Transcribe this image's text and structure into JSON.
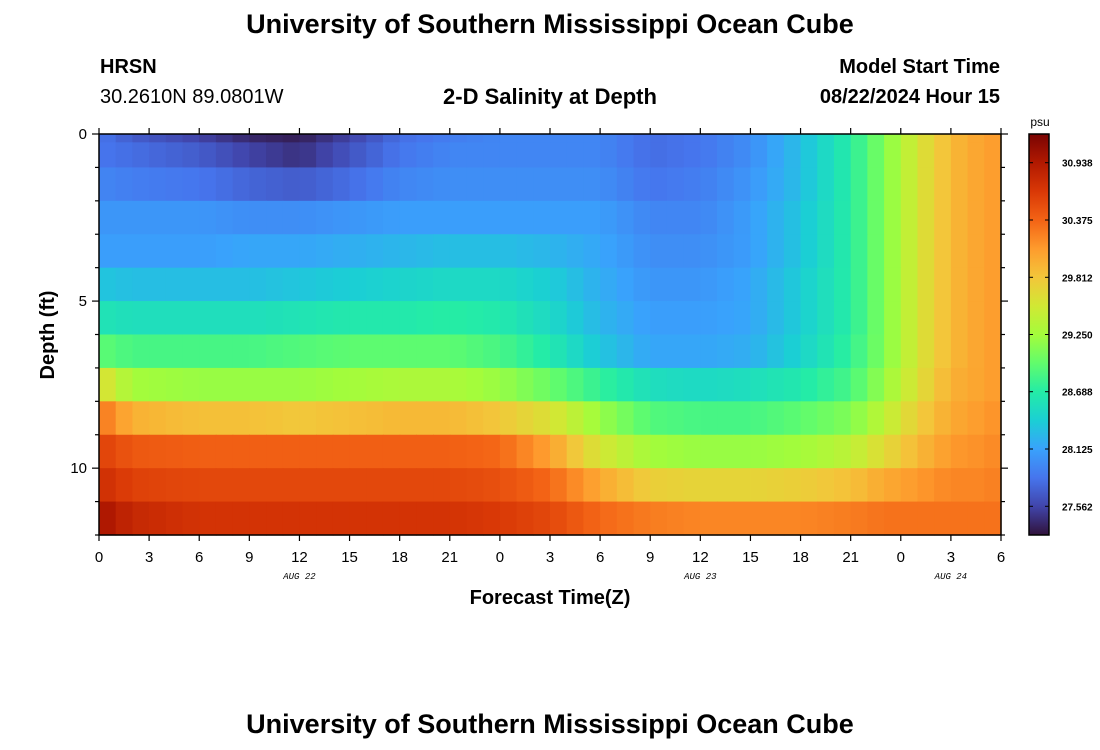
{
  "page": {
    "title_top": "University of Southern Mississippi Ocean Cube",
    "title_bottom": "University of Southern Mississippi Ocean Cube",
    "station": "HRSN",
    "coords": "30.2610N  89.0801W",
    "plot_title": "2-D Salinity at Depth",
    "model_start_label": "Model Start Time",
    "model_start_value": "08/22/2024 Hour 15"
  },
  "chart_data": {
    "type": "heatmap",
    "title": "2-D Salinity at Depth",
    "xlabel": "Forecast Time(Z)",
    "ylabel": "Depth (ft)",
    "x_tick_labels": [
      "0",
      "3",
      "6",
      "9",
      "12",
      "15",
      "18",
      "21",
      "0",
      "3",
      "6",
      "9",
      "12",
      "15",
      "18",
      "21",
      "0",
      "3",
      "6"
    ],
    "x_hours": [
      0,
      54
    ],
    "date_labels": [
      {
        "text": "AUG 22",
        "hour": 12
      },
      {
        "text": "AUG 23",
        "hour": 36
      },
      {
        "text": "AUG 24",
        "hour": 51
      }
    ],
    "y_ticks": [
      0,
      5,
      10
    ],
    "ylim": [
      0,
      12
    ],
    "layer_depths_ft": [
      0,
      0.5,
      1.5,
      2.5,
      3.5,
      4.5,
      5.5,
      6.5,
      7.5,
      8.5,
      9.5,
      10.5,
      11.5
    ],
    "colorbar": {
      "unit": "psu",
      "ticks": [
        "30.938",
        "30.375",
        "29.812",
        "29.250",
        "28.688",
        "28.125",
        "27.562"
      ],
      "vmin": 27.28,
      "vmax": 31.22
    },
    "colormap": [
      "#30123b",
      "#4145ab",
      "#4675ed",
      "#39a2fc",
      "#1bcfd4",
      "#24eca6",
      "#61fc6c",
      "#a4fc3b",
      "#d1e834",
      "#f3c63a",
      "#fe9b2d",
      "#f36315",
      "#d93806",
      "#b11901",
      "#7a0403"
    ],
    "control_hours": [
      0,
      2,
      6,
      9,
      12,
      15,
      18,
      21,
      24,
      27,
      30,
      33,
      36,
      39,
      42,
      45,
      47,
      49,
      51,
      53,
      54
    ],
    "salinity": [
      [
        27.85,
        27.7,
        27.55,
        27.4,
        27.35,
        27.55,
        27.8,
        27.9,
        27.95,
        27.95,
        27.95,
        27.8,
        27.85,
        28.0,
        28.3,
        28.7,
        29.1,
        29.55,
        29.9,
        30.05,
        30.1
      ],
      [
        27.85,
        27.8,
        27.7,
        27.55,
        27.45,
        27.65,
        27.85,
        27.95,
        27.95,
        27.95,
        27.95,
        27.8,
        27.85,
        28.0,
        28.3,
        28.7,
        29.1,
        29.55,
        29.9,
        30.05,
        30.1
      ],
      [
        27.95,
        27.9,
        27.85,
        27.75,
        27.7,
        27.8,
        27.95,
        28.0,
        28.0,
        28.0,
        28.0,
        27.85,
        27.9,
        28.05,
        28.3,
        28.7,
        29.1,
        29.55,
        29.9,
        30.05,
        30.1
      ],
      [
        28.05,
        28.05,
        28.05,
        28.0,
        28.0,
        28.05,
        28.1,
        28.1,
        28.1,
        28.1,
        28.1,
        27.95,
        27.95,
        28.1,
        28.35,
        28.7,
        29.1,
        29.55,
        29.9,
        30.05,
        30.1
      ],
      [
        28.1,
        28.1,
        28.1,
        28.15,
        28.15,
        28.2,
        28.25,
        28.3,
        28.3,
        28.25,
        28.15,
        28.0,
        28.0,
        28.1,
        28.35,
        28.7,
        29.1,
        29.55,
        29.9,
        30.05,
        30.1
      ],
      [
        28.35,
        28.3,
        28.3,
        28.3,
        28.35,
        28.4,
        28.45,
        28.5,
        28.5,
        28.4,
        28.2,
        28.05,
        28.05,
        28.15,
        28.4,
        28.7,
        29.1,
        29.55,
        29.9,
        30.05,
        30.1
      ],
      [
        28.6,
        28.55,
        28.55,
        28.55,
        28.6,
        28.65,
        28.65,
        28.7,
        28.65,
        28.5,
        28.25,
        28.1,
        28.1,
        28.15,
        28.4,
        28.7,
        29.1,
        29.55,
        29.9,
        30.05,
        30.1
      ],
      [
        28.95,
        28.85,
        28.85,
        28.85,
        28.9,
        28.95,
        28.95,
        28.95,
        28.85,
        28.65,
        28.35,
        28.15,
        28.15,
        28.2,
        28.45,
        28.75,
        29.1,
        29.55,
        29.9,
        30.05,
        30.1
      ],
      [
        29.65,
        29.25,
        29.2,
        29.2,
        29.2,
        29.25,
        29.3,
        29.3,
        29.2,
        29.0,
        28.75,
        28.55,
        28.5,
        28.55,
        28.65,
        28.85,
        29.2,
        29.6,
        29.95,
        30.05,
        30.1
      ],
      [
        30.3,
        29.95,
        29.85,
        29.85,
        29.8,
        29.85,
        29.9,
        29.9,
        29.8,
        29.6,
        29.2,
        28.9,
        28.85,
        28.85,
        28.95,
        29.1,
        29.4,
        29.75,
        30.0,
        30.1,
        30.15
      ],
      [
        30.6,
        30.45,
        30.4,
        30.4,
        30.4,
        30.4,
        30.4,
        30.4,
        30.35,
        30.05,
        29.55,
        29.25,
        29.2,
        29.2,
        29.25,
        29.4,
        29.65,
        29.9,
        30.1,
        30.15,
        30.2
      ],
      [
        30.75,
        30.6,
        30.55,
        30.55,
        30.55,
        30.55,
        30.55,
        30.55,
        30.5,
        30.35,
        30.0,
        29.75,
        29.7,
        29.7,
        29.75,
        29.85,
        30.0,
        30.1,
        30.2,
        30.2,
        30.25
      ],
      [
        31.0,
        30.8,
        30.7,
        30.7,
        30.7,
        30.7,
        30.7,
        30.7,
        30.65,
        30.55,
        30.35,
        30.25,
        30.2,
        30.2,
        30.2,
        30.25,
        30.3,
        30.3,
        30.3,
        30.3,
        30.3
      ]
    ]
  }
}
